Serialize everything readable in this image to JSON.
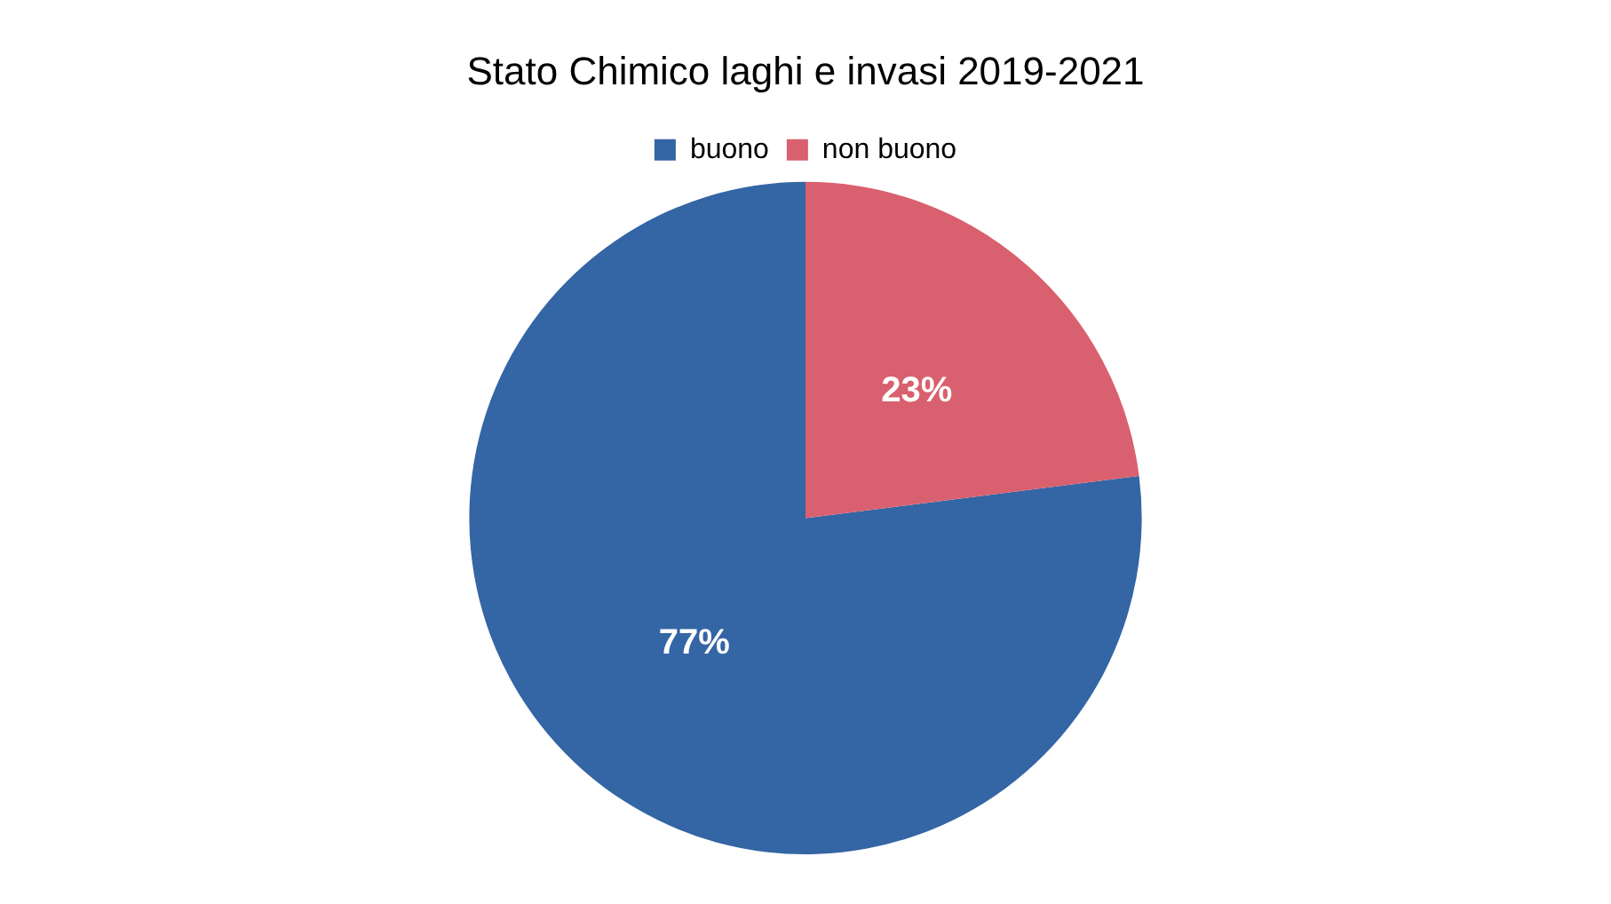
{
  "chart_data": {
    "type": "pie",
    "title": "Stato Chimico laghi e invasi 2019-2021",
    "categories": [
      "buono",
      "non buono"
    ],
    "values": [
      77,
      23
    ],
    "value_labels": [
      "77%",
      "23%"
    ],
    "colors": [
      "#3465a4",
      "#d9606e"
    ],
    "legend": "top"
  }
}
